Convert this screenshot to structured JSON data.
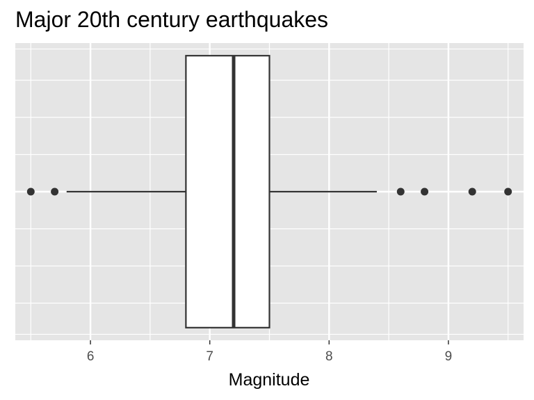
{
  "chart_data": {
    "type": "boxplot",
    "title": "Major 20th century earthquakes",
    "xlabel": "Magnitude",
    "ylabel": "",
    "xlim": [
      5.37,
      9.63
    ],
    "x_ticks": [
      6,
      7,
      8,
      9
    ],
    "x_tick_labels": [
      "6",
      "7",
      "8",
      "9"
    ],
    "grid": true,
    "box": {
      "lower_whisker": 5.8,
      "q1": 6.8,
      "median": 7.2,
      "q3": 7.5,
      "upper_whisker": 8.4,
      "outliers": [
        5.5,
        5.7,
        8.6,
        8.8,
        9.2,
        9.5
      ]
    }
  }
}
